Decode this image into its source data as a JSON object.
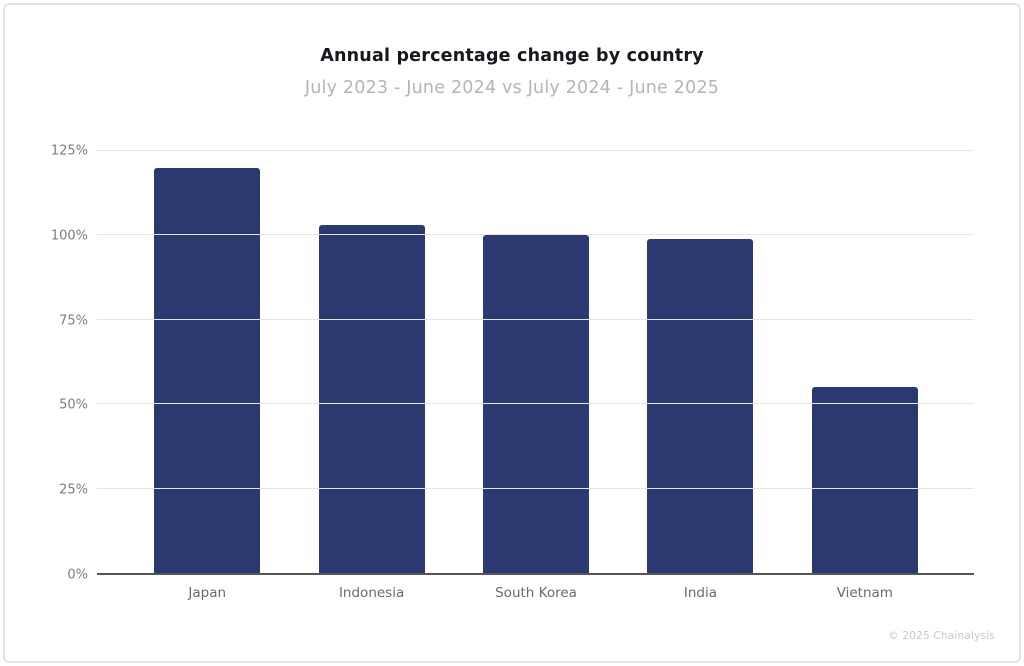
{
  "header": {
    "title": "Annual percentage change by country",
    "subtitle": "July 2023 - June 2024 vs July 2024 - June 2025"
  },
  "footer": {
    "credit": "© 2025 Chainalysis"
  },
  "chart_data": {
    "type": "bar",
    "title": "Annual percentage change by country",
    "subtitle": "July 2023 - June 2024 vs July 2024 - June 2025",
    "categories": [
      "Japan",
      "Indonesia",
      "South Korea",
      "India",
      "Vietnam"
    ],
    "values": [
      120,
      103,
      100,
      99,
      55
    ],
    "unit": "%",
    "xlabel": "",
    "ylabel": "",
    "ylim": [
      0,
      125
    ],
    "yticks": [
      0,
      25,
      50,
      75,
      100,
      125
    ],
    "ytick_labels": [
      "0%",
      "25%",
      "50%",
      "75%",
      "100%",
      "125%"
    ],
    "grid": "horizontal",
    "legend": "none",
    "bar_color": "#2a3970"
  },
  "colors": {
    "bar": "#2a3970",
    "title": "#17171f",
    "subtitle": "#b4b4ba",
    "ylabel": "#7d7d82",
    "xlabel": "#69696e",
    "grid": "#e6e6e8",
    "baseline": "#55555a",
    "credit": "#c7c7cb",
    "border": "#e4e4e7"
  }
}
